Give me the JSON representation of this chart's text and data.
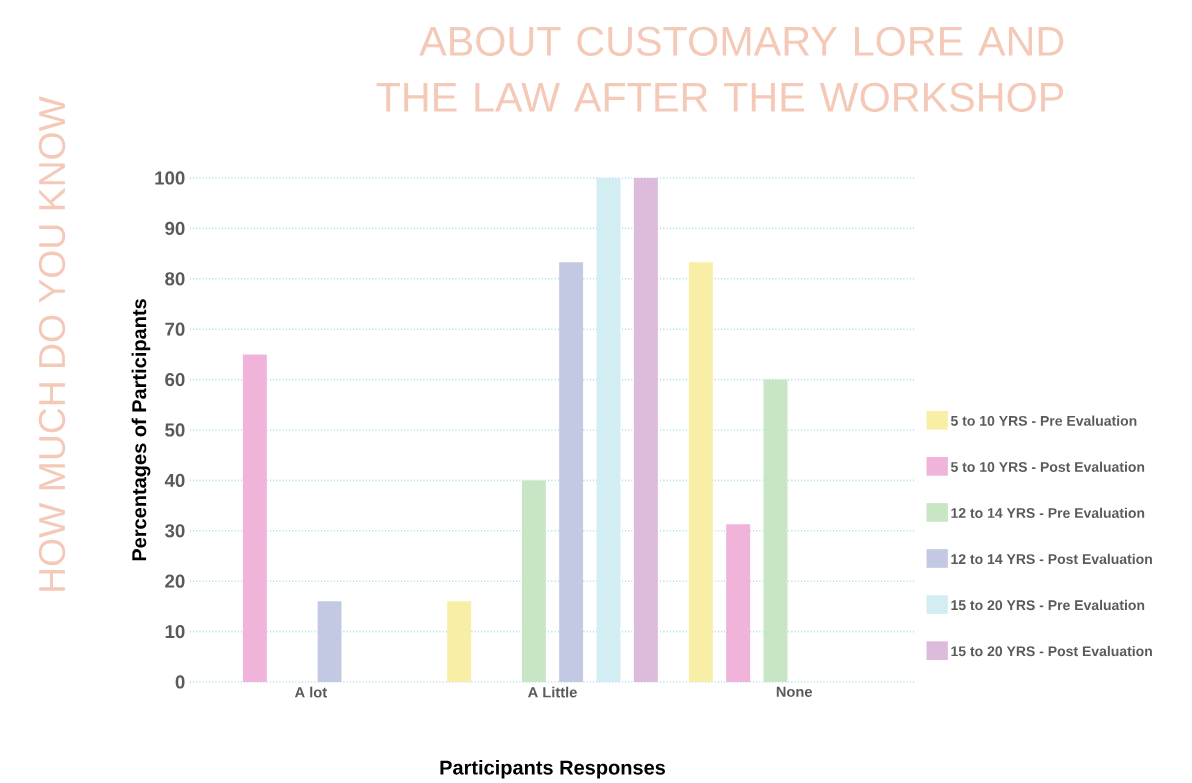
{
  "chart_data": {
    "type": "bar",
    "title": "ABOUT CUSTOMARY LORE AND THE LAW AFTER THE WORKSHOP",
    "annotations": [
      "HOW MUCH DO YOU KNOW"
    ],
    "xlabel": "Participants Responses",
    "ylabel": "Percentages of Participants",
    "categories": [
      "A lot",
      "A Little",
      "None"
    ],
    "series": [
      {
        "name": "5 to 10 YRS - Pre Evaluation",
        "color": "#f9eea6",
        "values": [
          null,
          16,
          83.3
        ]
      },
      {
        "name": "5 to 10 YRS - Post Evaluation",
        "color": "#f0b3d9",
        "values": [
          65,
          null,
          31.3
        ]
      },
      {
        "name": "12 to 14 YRS - Pre Evaluation",
        "color": "#c8e6c4",
        "values": [
          null,
          40,
          60
        ]
      },
      {
        "name": "12 to 14 YRS - Post Evaluation",
        "color": "#c3c9e3",
        "values": [
          16,
          83.3,
          null
        ]
      },
      {
        "name": "15 to 20 YRS - Pre Evaluation",
        "color": "#d2eef3",
        "values": [
          null,
          100,
          null
        ]
      },
      {
        "name": "15 to 20 YRS - Post Evaluation",
        "color": "#dcbbdb",
        "values": [
          null,
          100,
          null
        ]
      }
    ],
    "ylim": [
      0,
      100
    ],
    "yticks": [
      0,
      10,
      20,
      30,
      40,
      50,
      60,
      70,
      80,
      90,
      100
    ],
    "grid": "y",
    "legend": "right"
  }
}
